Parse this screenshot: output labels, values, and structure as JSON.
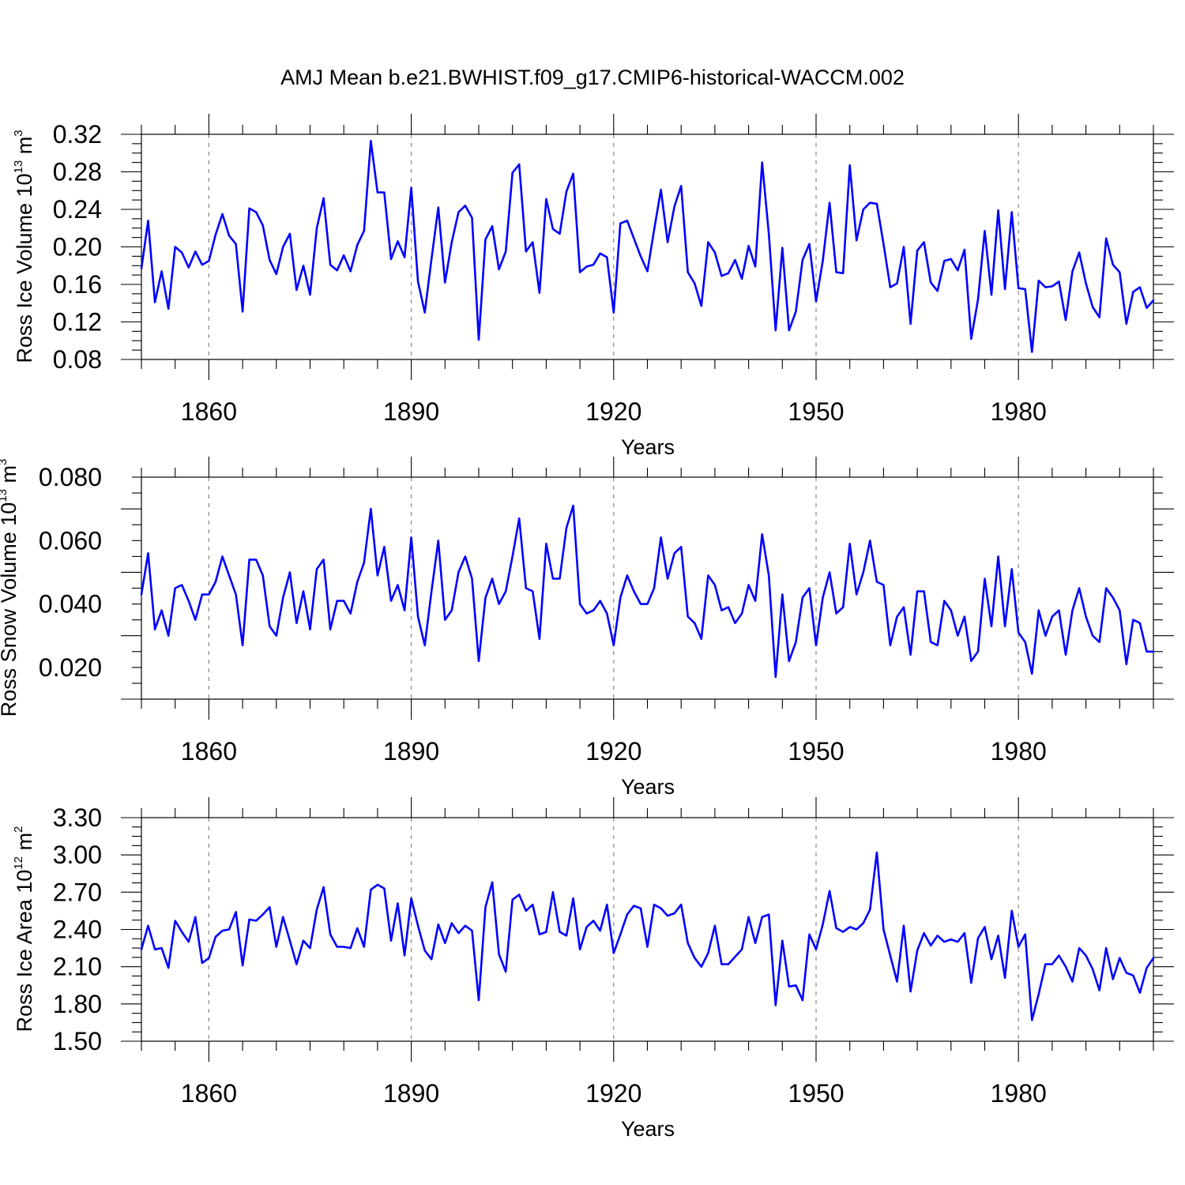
{
  "title": "AMJ Mean b.e21.BWHIST.f09_g17.CMIP6-historical-WACCM.002",
  "colors": {
    "line": "#0000ff",
    "grid": "#888888",
    "frame": "#000000"
  },
  "chart_data": [
    {
      "type": "line",
      "xlabel": "Years",
      "ylabel": {
        "base": "Ross Ice Volume 10",
        "exp": "13",
        "unit": " m",
        "unit_exp": "3"
      },
      "xlim": [
        1850,
        2000
      ],
      "ylim": [
        0.08,
        0.32
      ],
      "xticks": [
        1860,
        1890,
        1920,
        1950,
        1980
      ],
      "xtick_labels": [
        "1860",
        "1890",
        "1920",
        "1950",
        "1980"
      ],
      "yticks": [
        0.08,
        0.12,
        0.16,
        0.2,
        0.24,
        0.28,
        0.32
      ],
      "ytick_labels": [
        "0.08",
        "0.12",
        "0.16",
        "0.20",
        "0.24",
        "0.28",
        "0.32"
      ],
      "grid": "vertical dashed at major x ticks",
      "x_start": 1850,
      "values": [
        0.177,
        0.228,
        0.141,
        0.174,
        0.134,
        0.2,
        0.194,
        0.178,
        0.195,
        0.181,
        0.185,
        0.213,
        0.235,
        0.212,
        0.203,
        0.131,
        0.241,
        0.237,
        0.223,
        0.186,
        0.171,
        0.2,
        0.214,
        0.154,
        0.18,
        0.149,
        0.22,
        0.252,
        0.181,
        0.175,
        0.191,
        0.174,
        0.202,
        0.217,
        0.313,
        0.258,
        0.258,
        0.187,
        0.206,
        0.189,
        0.263,
        0.163,
        0.13,
        0.187,
        0.242,
        0.162,
        0.205,
        0.237,
        0.244,
        0.231,
        0.101,
        0.208,
        0.222,
        0.176,
        0.195,
        0.279,
        0.288,
        0.195,
        0.205,
        0.151,
        0.251,
        0.219,
        0.214,
        0.259,
        0.278,
        0.173,
        0.179,
        0.181,
        0.193,
        0.189,
        0.13,
        0.225,
        0.228,
        0.209,
        0.19,
        0.174,
        0.218,
        0.261,
        0.205,
        0.243,
        0.265,
        0.173,
        0.161,
        0.137,
        0.205,
        0.194,
        0.169,
        0.172,
        0.186,
        0.166,
        0.201,
        0.179,
        0.29,
        0.214,
        0.111,
        0.199,
        0.111,
        0.131,
        0.186,
        0.203,
        0.142,
        0.185,
        0.247,
        0.173,
        0.172,
        0.287,
        0.207,
        0.24,
        0.247,
        0.246,
        0.203,
        0.157,
        0.161,
        0.2,
        0.118,
        0.196,
        0.205,
        0.162,
        0.153,
        0.185,
        0.187,
        0.175,
        0.197,
        0.102,
        0.144,
        0.217,
        0.149,
        0.239,
        0.155,
        0.237,
        0.156,
        0.155,
        0.088,
        0.164,
        0.157,
        0.158,
        0.163,
        0.122,
        0.174,
        0.194,
        0.161,
        0.136,
        0.125,
        0.209,
        0.181,
        0.173,
        0.118,
        0.152,
        0.157,
        0.135,
        0.143
      ]
    },
    {
      "type": "line",
      "xlabel": "Years",
      "ylabel": {
        "base": "Ross Snow Volume 10",
        "exp": "13",
        "unit": " m",
        "unit_exp": "3"
      },
      "xlim": [
        1850,
        2000
      ],
      "ylim": [
        0.01,
        0.08
      ],
      "xticks": [
        1860,
        1890,
        1920,
        1950,
        1980
      ],
      "xtick_labels": [
        "1860",
        "1890",
        "1920",
        "1950",
        "1980"
      ],
      "yticks": [
        0.02,
        0.04,
        0.06,
        0.08
      ],
      "ytick_labels": [
        "0.020",
        "0.040",
        "0.060",
        "0.080"
      ],
      "grid": "vertical dashed at major x ticks",
      "x_start": 1850,
      "values": [
        0.043,
        0.056,
        0.032,
        0.038,
        0.03,
        0.045,
        0.046,
        0.041,
        0.035,
        0.043,
        0.043,
        0.047,
        0.055,
        0.049,
        0.043,
        0.027,
        0.054,
        0.054,
        0.049,
        0.033,
        0.03,
        0.042,
        0.05,
        0.034,
        0.044,
        0.032,
        0.051,
        0.054,
        0.032,
        0.041,
        0.041,
        0.037,
        0.047,
        0.053,
        0.07,
        0.049,
        0.058,
        0.041,
        0.046,
        0.038,
        0.061,
        0.036,
        0.027,
        0.044,
        0.06,
        0.035,
        0.038,
        0.05,
        0.055,
        0.048,
        0.022,
        0.042,
        0.048,
        0.04,
        0.044,
        0.055,
        0.067,
        0.045,
        0.044,
        0.029,
        0.059,
        0.048,
        0.048,
        0.064,
        0.071,
        0.04,
        0.037,
        0.038,
        0.041,
        0.037,
        0.027,
        0.042,
        0.049,
        0.044,
        0.04,
        0.04,
        0.045,
        0.061,
        0.048,
        0.056,
        0.058,
        0.036,
        0.034,
        0.029,
        0.049,
        0.046,
        0.038,
        0.039,
        0.034,
        0.037,
        0.046,
        0.041,
        0.062,
        0.049,
        0.017,
        0.043,
        0.022,
        0.028,
        0.042,
        0.045,
        0.027,
        0.042,
        0.05,
        0.037,
        0.039,
        0.059,
        0.043,
        0.05,
        0.06,
        0.047,
        0.046,
        0.027,
        0.036,
        0.039,
        0.024,
        0.044,
        0.044,
        0.028,
        0.027,
        0.041,
        0.038,
        0.03,
        0.036,
        0.022,
        0.025,
        0.048,
        0.033,
        0.055,
        0.033,
        0.051,
        0.031,
        0.028,
        0.018,
        0.038,
        0.03,
        0.036,
        0.038,
        0.024,
        0.038,
        0.045,
        0.036,
        0.03,
        0.028,
        0.045,
        0.042,
        0.038,
        0.021,
        0.035,
        0.034,
        0.025,
        0.025
      ]
    },
    {
      "type": "line",
      "xlabel": "Years",
      "ylabel": {
        "base": "Ross Ice Area 10",
        "exp": "12",
        "unit": " m",
        "unit_exp": "2"
      },
      "xlim": [
        1850,
        2000
      ],
      "ylim": [
        1.5,
        3.3
      ],
      "xticks": [
        1860,
        1890,
        1920,
        1950,
        1980
      ],
      "xtick_labels": [
        "1860",
        "1890",
        "1920",
        "1950",
        "1980"
      ],
      "yticks": [
        1.5,
        1.8,
        2.1,
        2.4,
        2.7,
        3.0,
        3.3
      ],
      "ytick_labels": [
        "1.50",
        "1.80",
        "2.10",
        "2.40",
        "2.70",
        "3.00",
        "3.30"
      ],
      "grid": "vertical dashed at major x ticks",
      "x_start": 1850,
      "values": [
        2.24,
        2.43,
        2.24,
        2.25,
        2.09,
        2.47,
        2.38,
        2.3,
        2.5,
        2.13,
        2.17,
        2.34,
        2.39,
        2.4,
        2.54,
        2.11,
        2.48,
        2.47,
        2.52,
        2.58,
        2.26,
        2.5,
        2.31,
        2.12,
        2.31,
        2.25,
        2.56,
        2.74,
        2.36,
        2.26,
        2.26,
        2.25,
        2.41,
        2.26,
        2.72,
        2.76,
        2.73,
        2.31,
        2.61,
        2.19,
        2.65,
        2.43,
        2.23,
        2.16,
        2.44,
        2.29,
        2.45,
        2.37,
        2.43,
        2.39,
        1.83,
        2.58,
        2.78,
        2.2,
        2.06,
        2.64,
        2.68,
        2.55,
        2.6,
        2.36,
        2.38,
        2.7,
        2.38,
        2.35,
        2.65,
        2.24,
        2.42,
        2.47,
        2.39,
        2.6,
        2.21,
        2.36,
        2.52,
        2.59,
        2.57,
        2.26,
        2.6,
        2.57,
        2.51,
        2.53,
        2.6,
        2.29,
        2.17,
        2.1,
        2.21,
        2.43,
        2.12,
        2.12,
        2.18,
        2.24,
        2.5,
        2.29,
        2.5,
        2.52,
        1.79,
        2.31,
        1.94,
        1.95,
        1.83,
        2.36,
        2.24,
        2.44,
        2.71,
        2.41,
        2.38,
        2.42,
        2.4,
        2.45,
        2.56,
        3.02,
        2.4,
        2.19,
        1.98,
        2.43,
        1.9,
        2.23,
        2.37,
        2.27,
        2.35,
        2.3,
        2.32,
        2.3,
        2.37,
        1.97,
        2.33,
        2.42,
        2.16,
        2.35,
        2.01,
        2.55,
        2.26,
        2.36,
        1.67,
        1.88,
        2.12,
        2.12,
        2.19,
        2.1,
        1.98,
        2.25,
        2.19,
        2.08,
        1.91,
        2.25,
        2.0,
        2.17,
        2.05,
        2.03,
        1.89,
        2.09,
        2.17
      ]
    }
  ]
}
